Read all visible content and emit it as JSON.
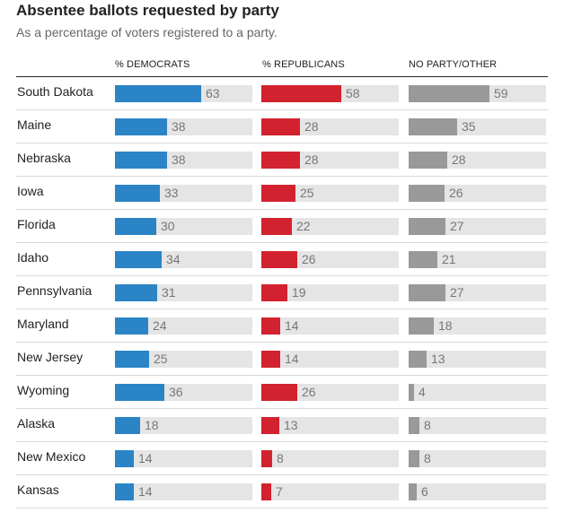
{
  "title": "Absentee ballots requested by party",
  "subtitle": "As a percentage of voters registered to a party.",
  "columns": {
    "dem": "% DEMOCRATS",
    "rep": "% REPUBLICANS",
    "oth": "NO PARTY/OTHER"
  },
  "colors": {
    "dem": "#2b84c5",
    "rep": "#d3222f",
    "oth": "#999999",
    "track": "#e5e5e5"
  },
  "chart_data": {
    "type": "bar",
    "orientation": "horizontal",
    "title": "Absentee ballots requested by party",
    "subtitle": "As a percentage of voters registered to a party.",
    "xlim": [
      0,
      100
    ],
    "categories": [
      "South Dakota",
      "Maine",
      "Nebraska",
      "Iowa",
      "Florida",
      "Idaho",
      "Pennsylvania",
      "Maryland",
      "New Jersey",
      "Wyoming",
      "Alaska",
      "New Mexico",
      "Kansas"
    ],
    "series": [
      {
        "name": "% DEMOCRATS",
        "values": [
          63,
          38,
          38,
          33,
          30,
          34,
          31,
          24,
          25,
          36,
          18,
          14,
          14
        ]
      },
      {
        "name": "% REPUBLICANS",
        "values": [
          58,
          28,
          28,
          25,
          22,
          26,
          19,
          14,
          14,
          26,
          13,
          8,
          7
        ]
      },
      {
        "name": "NO PARTY/OTHER",
        "values": [
          59,
          35,
          28,
          26,
          27,
          21,
          27,
          18,
          13,
          4,
          8,
          8,
          6
        ]
      }
    ]
  }
}
